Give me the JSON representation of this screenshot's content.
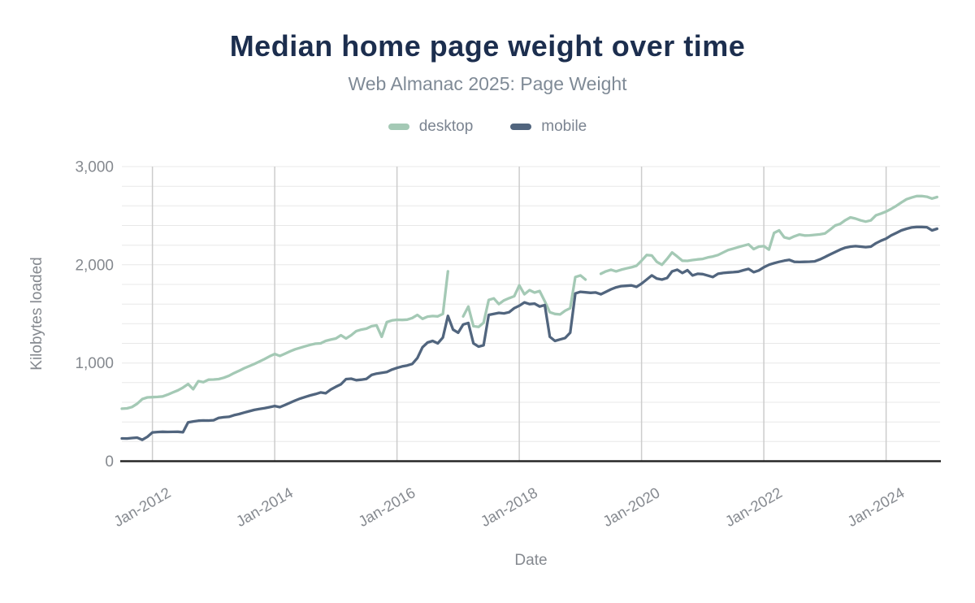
{
  "title": "Median home page weight over time",
  "subtitle": "Web Almanac 2025: Page Weight",
  "colors": {
    "desktop": "#a4c9b5",
    "mobile": "#51657e",
    "title_text": "#1c2e4e",
    "subtitle_text": "#7f8a96",
    "axis_text": "#85898f",
    "legend_text": "#7b8491",
    "axis_line": "#262626",
    "grid_vertical": "#cccccc",
    "grid_horizontal": "#e8e8e8"
  },
  "legend": [
    {
      "label": "desktop",
      "color": "#a4c9b5"
    },
    {
      "label": "mobile",
      "color": "#51657e"
    }
  ],
  "chart_data": {
    "type": "line",
    "title": "Median home page weight over time",
    "subtitle": "Web Almanac 2025: Page Weight",
    "xlabel": "Date",
    "ylabel": "Kilobytes loaded",
    "ylim": [
      0,
      3000
    ],
    "y_tick_labels": [
      "0",
      "1,000",
      "2,000",
      "3,000"
    ],
    "y_grid_step": 200,
    "x_tick_labels": [
      "Jan-2012",
      "Jan-2014",
      "Jan-2016",
      "Jan-2018",
      "Jan-2020",
      "Jan-2022",
      "Jan-2024"
    ],
    "x_start_month": "2011-07",
    "x_end_month": "2024-11",
    "cadence": "monthly",
    "legend_position": "top",
    "grid": true,
    "series": [
      {
        "name": "desktop",
        "color": "#a4c9b5",
        "values": [
          535,
          538,
          552,
          585,
          632,
          650,
          652,
          655,
          660,
          678,
          700,
          722,
          750,
          785,
          733,
          815,
          805,
          830,
          832,
          836,
          850,
          870,
          897,
          920,
          947,
          968,
          990,
          1015,
          1040,
          1068,
          1092,
          1072,
          1095,
          1118,
          1140,
          1155,
          1170,
          1185,
          1197,
          1200,
          1225,
          1238,
          1250,
          1283,
          1250,
          1283,
          1325,
          1340,
          1350,
          1375,
          1383,
          1267,
          1417,
          1433,
          1440,
          1438,
          1442,
          1458,
          1490,
          1450,
          1472,
          1478,
          1475,
          1500,
          1933,
          null,
          null,
          1475,
          1575,
          1375,
          1367,
          1410,
          1642,
          1658,
          1600,
          1638,
          1660,
          1680,
          1790,
          1700,
          1742,
          1717,
          1733,
          1629,
          1517,
          1500,
          1495,
          1533,
          1558,
          1875,
          1892,
          1850,
          null,
          null,
          1908,
          1933,
          1950,
          1933,
          1950,
          1963,
          1975,
          1990,
          2042,
          2100,
          2095,
          2030,
          2000,
          2060,
          2125,
          2085,
          2042,
          2040,
          2048,
          2055,
          2060,
          2075,
          2085,
          2100,
          2125,
          2150,
          2165,
          2180,
          2195,
          2208,
          2160,
          2185,
          2190,
          2155,
          2325,
          2350,
          2280,
          2267,
          2290,
          2308,
          2298,
          2300,
          2305,
          2310,
          2320,
          2358,
          2400,
          2417,
          2455,
          2483,
          2470,
          2452,
          2440,
          2452,
          2504,
          2522,
          2542,
          2570,
          2600,
          2635,
          2667,
          2685,
          2700,
          2700,
          2693,
          2675,
          2690
        ]
      },
      {
        "name": "mobile",
        "color": "#51657e",
        "values": [
          232,
          231,
          236,
          240,
          218,
          248,
          293,
          297,
          300,
          298,
          299,
          300,
          295,
          395,
          405,
          412,
          415,
          414,
          417,
          440,
          448,
          452,
          468,
          480,
          495,
          509,
          522,
          532,
          540,
          550,
          562,
          550,
          572,
          595,
          617,
          638,
          655,
          670,
          684,
          700,
          692,
          730,
          758,
          783,
          836,
          840,
          825,
          830,
          838,
          878,
          892,
          900,
          908,
          933,
          950,
          965,
          975,
          991,
          1050,
          1160,
          1208,
          1225,
          1200,
          1260,
          1480,
          1340,
          1308,
          1392,
          1408,
          1200,
          1167,
          1180,
          1490,
          1500,
          1510,
          1505,
          1517,
          1558,
          1583,
          1617,
          1600,
          1605,
          1575,
          1590,
          1267,
          1225,
          1240,
          1255,
          1308,
          1708,
          1725,
          1720,
          1715,
          1718,
          1700,
          1725,
          1750,
          1770,
          1783,
          1786,
          1790,
          1775,
          1808,
          1850,
          1892,
          1860,
          1850,
          1865,
          1933,
          1950,
          1917,
          1945,
          1892,
          1908,
          1905,
          1890,
          1875,
          1908,
          1917,
          1922,
          1925,
          1930,
          1945,
          1958,
          1925,
          1942,
          1975,
          2000,
          2017,
          2030,
          2042,
          2050,
          2030,
          2028,
          2030,
          2032,
          2035,
          2055,
          2080,
          2105,
          2130,
          2155,
          2175,
          2185,
          2190,
          2185,
          2180,
          2185,
          2220,
          2245,
          2267,
          2300,
          2325,
          2350,
          2367,
          2380,
          2385,
          2385,
          2383,
          2350,
          2367
        ]
      }
    ]
  }
}
